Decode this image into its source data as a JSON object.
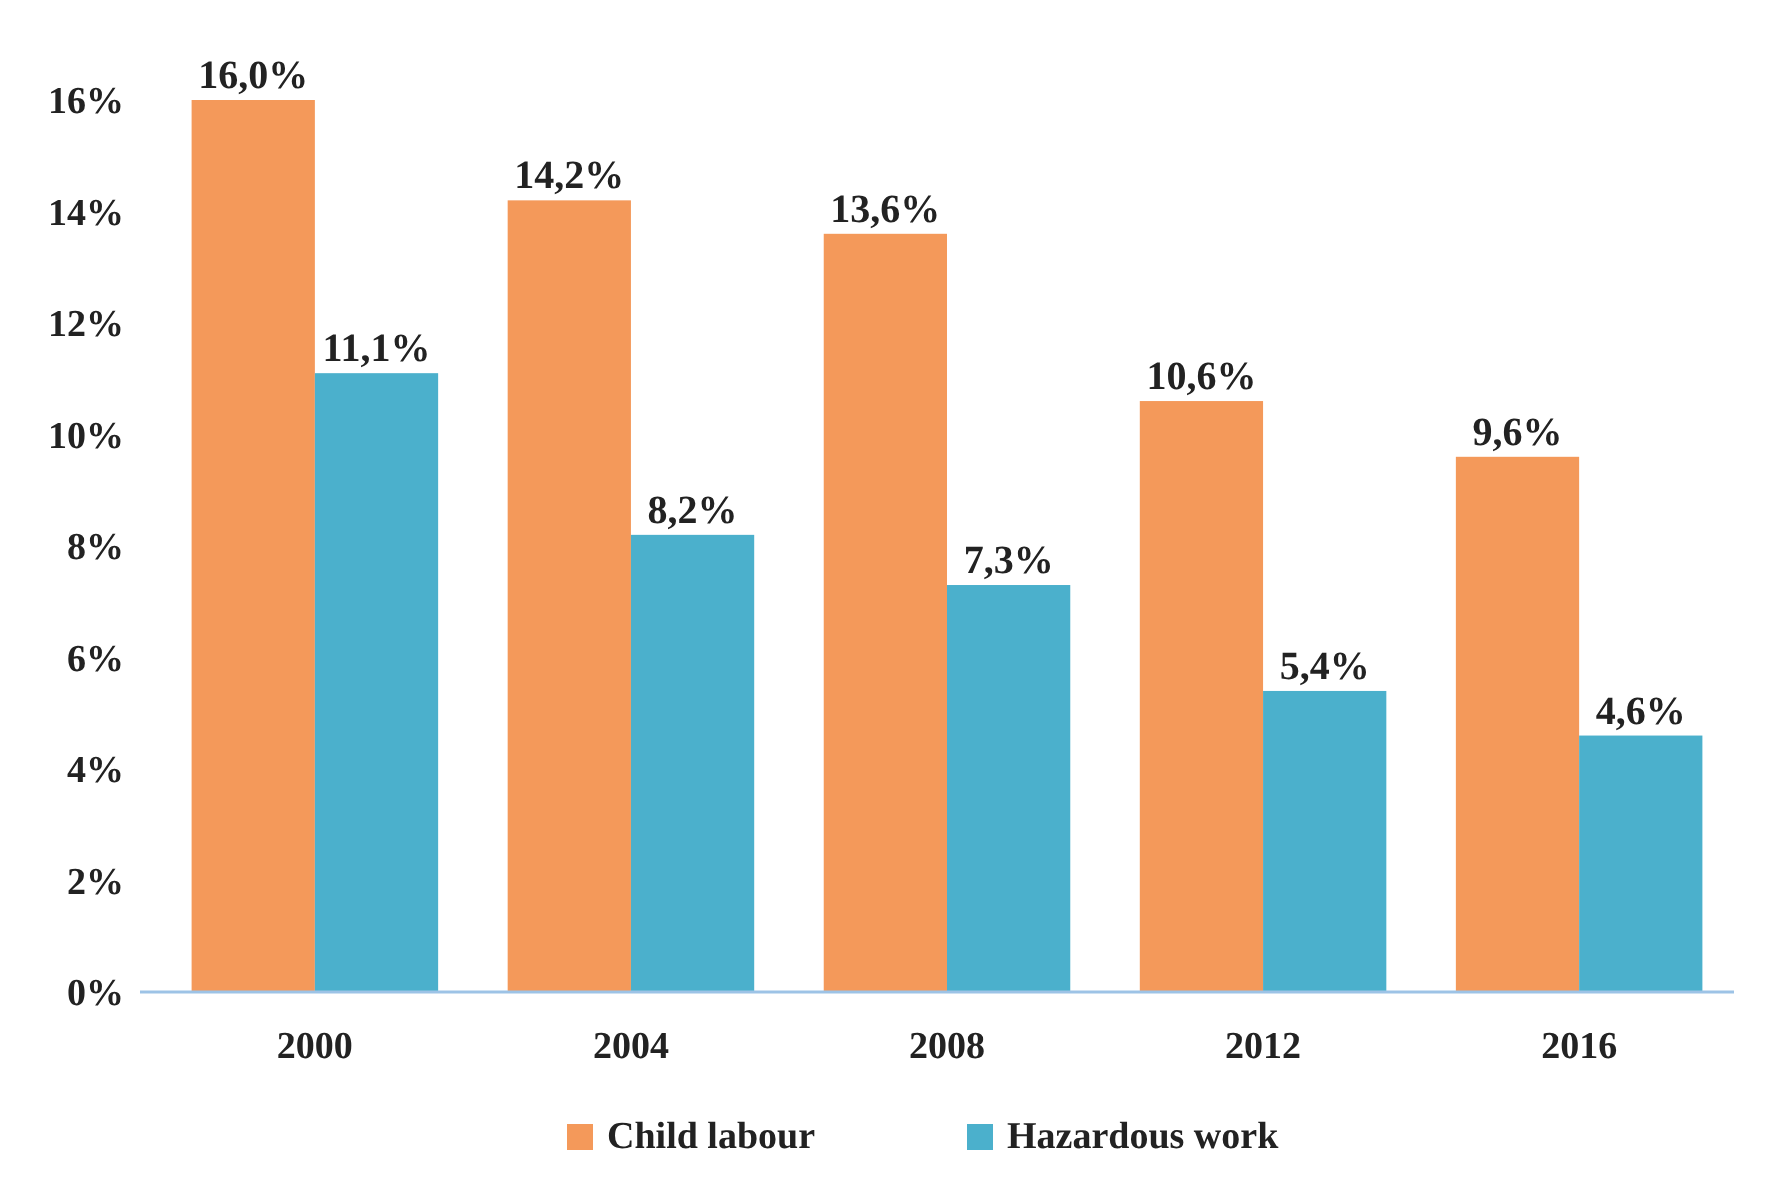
{
  "chart_data": {
    "type": "bar",
    "categories": [
      "2000",
      "2004",
      "2008",
      "2012",
      "2016"
    ],
    "series": [
      {
        "name": "Child labour",
        "color": "#f4995a",
        "values": [
          16.0,
          14.2,
          13.6,
          10.6,
          9.6
        ],
        "value_labels": [
          "16,0%",
          "14,2%",
          "13,6%",
          "10,6%",
          "9,6%"
        ]
      },
      {
        "name": "Hazardous work",
        "color": "#4bb0cc",
        "values": [
          11.1,
          8.2,
          7.3,
          5.4,
          4.6
        ],
        "value_labels": [
          "11,1%",
          "8,2%",
          "7,3%",
          "5,4%",
          "4,6%"
        ]
      }
    ],
    "ylim": [
      0,
      16
    ],
    "yticks": [
      {
        "value": 0,
        "label": "0%"
      },
      {
        "value": 2,
        "label": "2%"
      },
      {
        "value": 4,
        "label": "4%"
      },
      {
        "value": 6,
        "label": "6%"
      },
      {
        "value": 8,
        "label": "8%"
      },
      {
        "value": 10,
        "label": "10%"
      },
      {
        "value": 12,
        "label": "12%"
      },
      {
        "value": 14,
        "label": "14%"
      },
      {
        "value": 16,
        "label": "16%"
      }
    ],
    "grid": false,
    "legend": "bottom"
  }
}
